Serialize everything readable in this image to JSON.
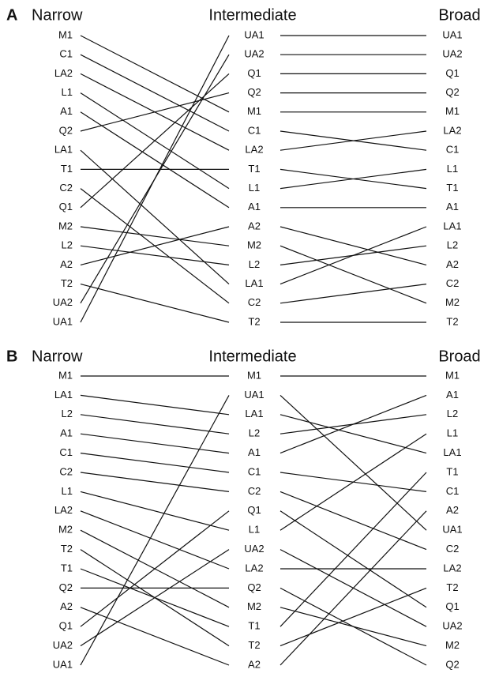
{
  "panels": [
    {
      "letter": "A",
      "columns": [
        {
          "title": "Narrow",
          "labels": [
            "M1",
            "C1",
            "LA2",
            "L1",
            "A1",
            "Q2",
            "LA1",
            "T1",
            "C2",
            "Q1",
            "M2",
            "L2",
            "A2",
            "T2",
            "UA2",
            "UA1"
          ]
        },
        {
          "title": "Intermediate",
          "labels": [
            "UA1",
            "UA2",
            "Q1",
            "Q2",
            "M1",
            "C1",
            "LA2",
            "T1",
            "L1",
            "A1",
            "A2",
            "M2",
            "L2",
            "LA1",
            "C2",
            "T2"
          ]
        },
        {
          "title": "Broad",
          "labels": [
            "UA1",
            "UA2",
            "Q1",
            "Q2",
            "M1",
            "LA2",
            "C1",
            "L1",
            "T1",
            "A1",
            "LA1",
            "L2",
            "A2",
            "C2",
            "M2",
            "T2"
          ]
        }
      ]
    },
    {
      "letter": "B",
      "columns": [
        {
          "title": "Narrow",
          "labels": [
            "M1",
            "LA1",
            "L2",
            "A1",
            "C1",
            "C2",
            "L1",
            "LA2",
            "M2",
            "T2",
            "T1",
            "Q2",
            "A2",
            "Q1",
            "UA2",
            "UA1"
          ]
        },
        {
          "title": "Intermediate",
          "labels": [
            "M1",
            "UA1",
            "LA1",
            "L2",
            "A1",
            "C1",
            "C2",
            "Q1",
            "L1",
            "UA2",
            "LA2",
            "Q2",
            "M2",
            "T1",
            "T2",
            "A2"
          ]
        },
        {
          "title": "Broad",
          "labels": [
            "M1",
            "A1",
            "L2",
            "L1",
            "LA1",
            "T1",
            "C1",
            "A2",
            "UA1",
            "C2",
            "LA2",
            "T2",
            "Q1",
            "UA2",
            "M2",
            "Q2"
          ]
        }
      ]
    }
  ]
}
